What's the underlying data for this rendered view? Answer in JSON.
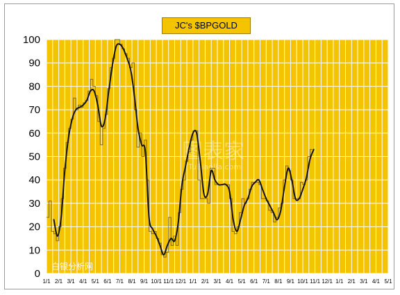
{
  "chart_data": {
    "type": "line",
    "title": "JC's $BPGOLD",
    "xlabel": "",
    "ylabel": "",
    "ylim": [
      0,
      100
    ],
    "yticks": [
      0,
      10,
      20,
      30,
      40,
      50,
      60,
      70,
      80,
      90,
      100
    ],
    "xtick_labels": [
      "1/1",
      "2/1",
      "3/1",
      "4/1",
      "5/1",
      "6/1",
      "7/1",
      "8/1",
      "9/1",
      "10/1",
      "11/1",
      "12/1",
      "1/1",
      "2/1",
      "3/1",
      "4/1",
      "5/1",
      "6/1",
      "7/1",
      "8/1",
      "9/1",
      "10/1",
      "11/1",
      "12/1",
      "1/1",
      "2/1",
      "3/1",
      "4/1",
      "5/1"
    ],
    "grid": true,
    "background_color": "#f5c400",
    "grid_color": "#ffffff",
    "series": [
      {
        "style": "thin-step",
        "color": "#5a4a10",
        "values": [
          [
            0,
            24
          ],
          [
            0.2,
            31
          ],
          [
            0.4,
            18
          ],
          [
            0.6,
            17
          ],
          [
            0.8,
            14
          ],
          [
            1.0,
            20
          ],
          [
            1.2,
            32
          ],
          [
            1.4,
            45
          ],
          [
            1.6,
            56
          ],
          [
            1.8,
            62
          ],
          [
            2.0,
            66
          ],
          [
            2.2,
            75
          ],
          [
            2.4,
            70
          ],
          [
            2.6,
            72
          ],
          [
            2.8,
            71
          ],
          [
            3.0,
            73
          ],
          [
            3.2,
            74
          ],
          [
            3.4,
            78
          ],
          [
            3.6,
            83
          ],
          [
            3.8,
            80
          ],
          [
            4.0,
            76
          ],
          [
            4.2,
            65
          ],
          [
            4.4,
            55
          ],
          [
            4.6,
            62
          ],
          [
            4.8,
            68
          ],
          [
            5.0,
            79
          ],
          [
            5.2,
            88
          ],
          [
            5.4,
            92
          ],
          [
            5.6,
            100
          ],
          [
            5.8,
            100
          ],
          [
            6.0,
            98
          ],
          [
            6.2,
            96
          ],
          [
            6.4,
            94
          ],
          [
            6.6,
            92
          ],
          [
            6.8,
            88
          ],
          [
            7.0,
            90
          ],
          [
            7.2,
            70
          ],
          [
            7.4,
            54
          ],
          [
            7.6,
            60
          ],
          [
            7.8,
            50
          ],
          [
            8.0,
            57
          ],
          [
            8.2,
            40
          ],
          [
            8.4,
            18
          ],
          [
            8.6,
            17
          ],
          [
            8.8,
            18
          ],
          [
            9.0,
            15
          ],
          [
            9.2,
            13
          ],
          [
            9.4,
            8
          ],
          [
            9.6,
            7
          ],
          [
            9.8,
            9
          ],
          [
            10.0,
            24
          ],
          [
            10.2,
            12
          ],
          [
            10.4,
            16
          ],
          [
            10.6,
            12
          ],
          [
            10.8,
            26
          ],
          [
            11.0,
            36
          ],
          [
            11.2,
            40
          ],
          [
            11.4,
            48
          ],
          [
            11.6,
            52
          ],
          [
            11.8,
            57
          ],
          [
            12.0,
            61
          ],
          [
            12.2,
            61
          ],
          [
            12.4,
            40
          ],
          [
            12.6,
            32
          ],
          [
            12.8,
            32
          ],
          [
            13.0,
            32
          ],
          [
            13.2,
            30
          ],
          [
            13.4,
            45
          ],
          [
            13.6,
            45
          ],
          [
            13.8,
            38
          ],
          [
            14.0,
            38
          ],
          [
            14.2,
            38
          ],
          [
            14.4,
            38
          ],
          [
            14.6,
            38
          ],
          [
            14.8,
            38
          ],
          [
            15.0,
            32
          ],
          [
            15.2,
            18
          ],
          [
            15.4,
            17
          ],
          [
            15.6,
            20
          ],
          [
            15.8,
            26
          ],
          [
            16.0,
            32
          ],
          [
            16.2,
            30
          ],
          [
            16.4,
            32
          ],
          [
            16.6,
            36
          ],
          [
            16.8,
            39
          ],
          [
            17.0,
            39
          ],
          [
            17.2,
            39
          ],
          [
            17.4,
            38
          ],
          [
            17.6,
            32
          ],
          [
            17.8,
            32
          ],
          [
            18.0,
            31
          ],
          [
            18.2,
            27
          ],
          [
            18.4,
            26
          ],
          [
            18.6,
            22
          ],
          [
            18.8,
            24
          ],
          [
            19.0,
            28
          ],
          [
            19.2,
            30
          ],
          [
            19.4,
            40
          ],
          [
            19.6,
            46
          ],
          [
            19.8,
            44
          ],
          [
            20.0,
            40
          ],
          [
            20.2,
            32
          ],
          [
            20.4,
            32
          ],
          [
            20.6,
            32
          ],
          [
            20.8,
            39
          ],
          [
            21.0,
            38
          ],
          [
            21.2,
            40
          ],
          [
            21.4,
            50
          ],
          [
            21.6,
            53
          ],
          [
            21.8,
            53
          ]
        ]
      },
      {
        "style": "smooth-thick",
        "color": "#111111",
        "values": [
          [
            0.6,
            23
          ],
          [
            0.9,
            16
          ],
          [
            1.2,
            24
          ],
          [
            1.5,
            44
          ],
          [
            1.8,
            58
          ],
          [
            2.1,
            66
          ],
          [
            2.4,
            70
          ],
          [
            2.7,
            71
          ],
          [
            3.0,
            72
          ],
          [
            3.3,
            74
          ],
          [
            3.6,
            78
          ],
          [
            3.9,
            78
          ],
          [
            4.2,
            72
          ],
          [
            4.5,
            63
          ],
          [
            4.8,
            66
          ],
          [
            5.1,
            78
          ],
          [
            5.4,
            89
          ],
          [
            5.7,
            97
          ],
          [
            6.0,
            98
          ],
          [
            6.3,
            96
          ],
          [
            6.6,
            92
          ],
          [
            6.9,
            87
          ],
          [
            7.2,
            76
          ],
          [
            7.5,
            62
          ],
          [
            7.8,
            55
          ],
          [
            8.1,
            52
          ],
          [
            8.4,
            24
          ],
          [
            8.7,
            19
          ],
          [
            9.0,
            16
          ],
          [
            9.3,
            12
          ],
          [
            9.6,
            8
          ],
          [
            9.9,
            12
          ],
          [
            10.2,
            15
          ],
          [
            10.5,
            14
          ],
          [
            10.8,
            22
          ],
          [
            11.1,
            38
          ],
          [
            11.4,
            46
          ],
          [
            11.7,
            54
          ],
          [
            12.0,
            60
          ],
          [
            12.3,
            60
          ],
          [
            12.6,
            48
          ],
          [
            12.9,
            34
          ],
          [
            13.2,
            34
          ],
          [
            13.5,
            44
          ],
          [
            13.8,
            40
          ],
          [
            14.1,
            38
          ],
          [
            14.4,
            38
          ],
          [
            14.7,
            38
          ],
          [
            15.0,
            35
          ],
          [
            15.3,
            23
          ],
          [
            15.6,
            18
          ],
          [
            15.9,
            23
          ],
          [
            16.2,
            29
          ],
          [
            16.5,
            32
          ],
          [
            16.8,
            37
          ],
          [
            17.1,
            39
          ],
          [
            17.4,
            40
          ],
          [
            17.7,
            36
          ],
          [
            18.0,
            32
          ],
          [
            18.3,
            29
          ],
          [
            18.6,
            26
          ],
          [
            18.9,
            23
          ],
          [
            19.2,
            27
          ],
          [
            19.5,
            37
          ],
          [
            19.8,
            45
          ],
          [
            20.1,
            40
          ],
          [
            20.4,
            32
          ],
          [
            20.7,
            32
          ],
          [
            21.0,
            36
          ],
          [
            21.3,
            41
          ],
          [
            21.6,
            49
          ],
          [
            21.9,
            53
          ]
        ]
      }
    ],
    "watermarks": [
      "图表家",
      "TuBiaoJia.com",
      "白银分析网"
    ]
  }
}
